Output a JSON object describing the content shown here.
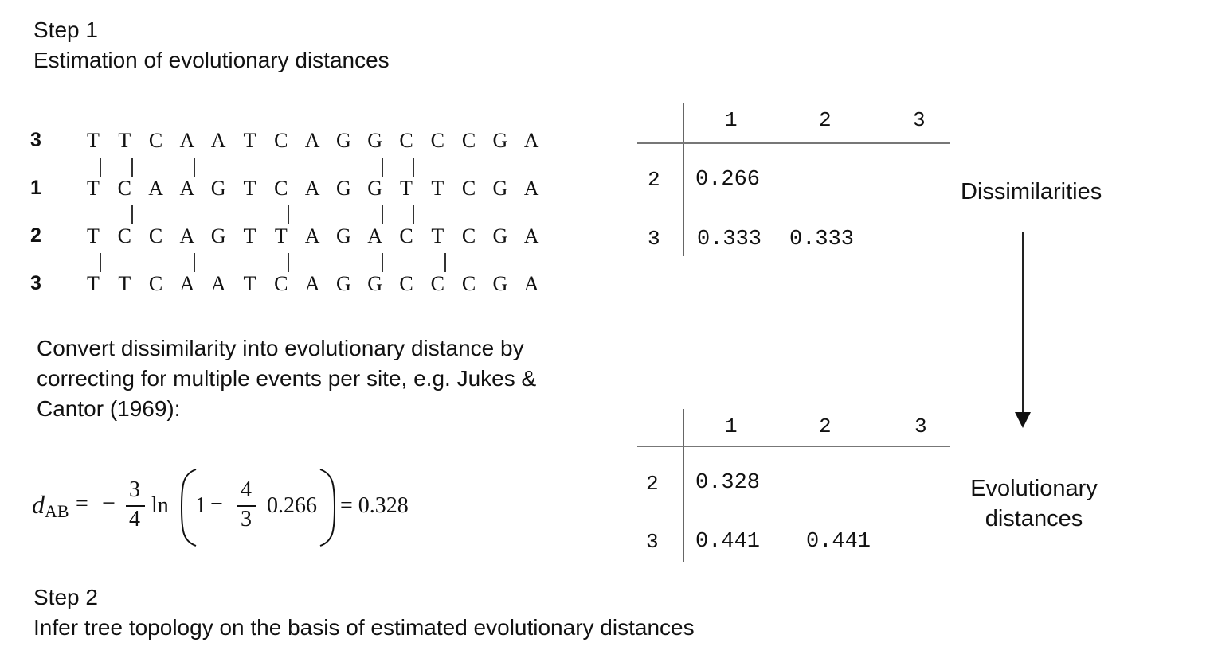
{
  "step1": {
    "label": "Step 1",
    "title": "Estimation of evolutionary distances"
  },
  "alignment": {
    "rows": [
      {
        "id": "3",
        "bases": [
          "T",
          "T",
          "C",
          "A",
          "A",
          "T",
          "C",
          "A",
          "G",
          "G",
          "C",
          "C",
          "C",
          "G",
          "A"
        ]
      },
      {
        "id": "1",
        "bases": [
          "T",
          "C",
          "A",
          "A",
          "G",
          "T",
          "C",
          "A",
          "G",
          "G",
          "T",
          "T",
          "C",
          "G",
          "A"
        ]
      },
      {
        "id": "2",
        "bases": [
          "T",
          "C",
          "C",
          "A",
          "G",
          "T",
          "T",
          "A",
          "G",
          "A",
          "C",
          "T",
          "C",
          "G",
          "A"
        ]
      },
      {
        "id": "3",
        "bases": [
          "T",
          "T",
          "C",
          "A",
          "A",
          "T",
          "C",
          "A",
          "G",
          "G",
          "C",
          "C",
          "C",
          "G",
          "A"
        ]
      }
    ],
    "mismatch_ticks": [
      [
        1,
        2,
        4,
        10,
        11
      ],
      [
        2,
        7,
        10,
        11
      ],
      [
        1,
        4,
        7,
        10,
        12
      ]
    ]
  },
  "explanation": "Convert dissimilarity into evolutionary distance by correcting for multiple events per site, e.g. Jukes & Cantor (1969):",
  "formula": {
    "lhs_var": "d",
    "lhs_sub": "AB",
    "eq": "=",
    "minus": "−",
    "frac1_num": "3",
    "frac1_den": "4",
    "ln": "ln",
    "one": "1",
    "minus2": "−",
    "frac2_num": "4",
    "frac2_den": "3",
    "value": "0.266",
    "result": "= 0.328"
  },
  "dissimilarities": {
    "col_headers": [
      "1",
      "2",
      "3"
    ],
    "row_headers": [
      "2",
      "3"
    ],
    "cells": [
      [
        "0.266"
      ],
      [
        "0.333",
        "0.333"
      ]
    ],
    "label": "Dissimilarities"
  },
  "evolutionary": {
    "col_headers": [
      "1",
      "2",
      "3"
    ],
    "row_headers": [
      "2",
      "3"
    ],
    "cells": [
      [
        "0.328"
      ],
      [
        "0.441",
        "0.441"
      ]
    ],
    "label_line1": "Evolutionary",
    "label_line2": "distances"
  },
  "step2": {
    "label": "Step 2",
    "title": "Infer tree topology on the basis of estimated evolutionary distances"
  }
}
